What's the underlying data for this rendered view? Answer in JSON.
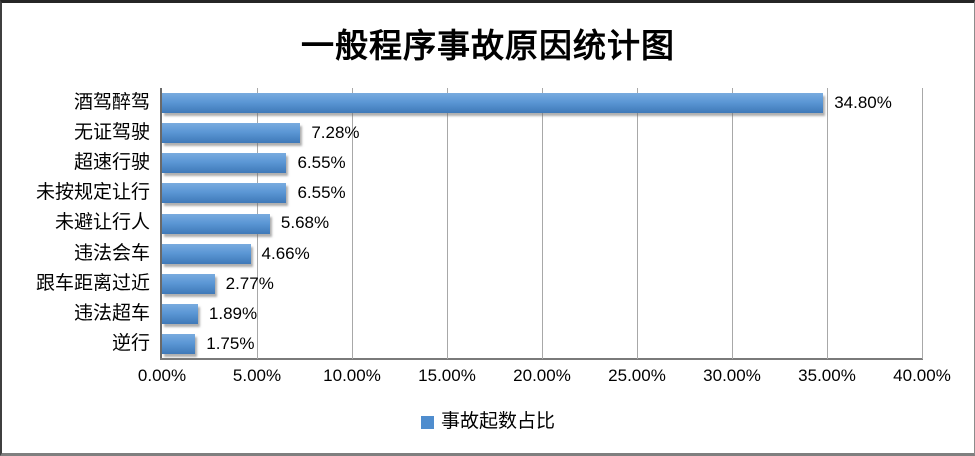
{
  "chart_data": {
    "type": "bar",
    "orientation": "horizontal",
    "title": "一般程序事故原因统计图",
    "categories": [
      "酒驾醉驾",
      "无证驾驶",
      "超速行驶",
      "未按规定让行",
      "未避让行人",
      "违法会车",
      "跟车距离过近",
      "违法超车",
      "逆行"
    ],
    "values": [
      34.8,
      7.28,
      6.55,
      6.55,
      5.68,
      4.66,
      2.77,
      1.89,
      1.75
    ],
    "value_labels": [
      "34.80%",
      "7.28%",
      "6.55%",
      "6.55%",
      "5.68%",
      "4.66%",
      "2.77%",
      "1.89%",
      "1.75%"
    ],
    "x_ticks": [
      "0.00%",
      "5.00%",
      "10.00%",
      "15.00%",
      "20.00%",
      "25.00%",
      "30.00%",
      "35.00%",
      "40.00%"
    ],
    "xlim": [
      0,
      40
    ],
    "grid": true,
    "legend": {
      "label": "事故起数占比",
      "position": "bottom"
    },
    "series_name": "事故起数占比",
    "colors": {
      "bar_top": "#79abdf",
      "bar_mid": "#5b97d5",
      "bar_bottom": "#3f79b8",
      "legend_swatch": "#4f8dce",
      "gridline": "#a8a8a8",
      "axis": "#6a6a6a",
      "text": "#000000"
    }
  }
}
